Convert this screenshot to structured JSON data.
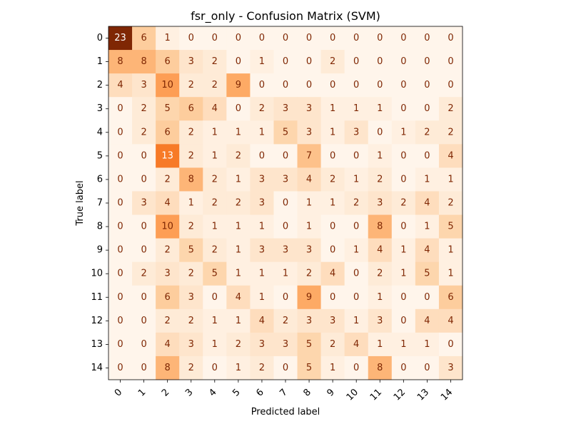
{
  "chart_data": {
    "type": "heatmap",
    "title": "fsr_only - Confusion Matrix (SVM)",
    "xlabel": "Predicted label",
    "ylabel": "True label",
    "colormap": "Oranges",
    "vmin": 0,
    "vmax": 23,
    "x_tick_labels": [
      "0",
      "1",
      "2",
      "3",
      "4",
      "5",
      "6",
      "7",
      "8",
      "9",
      "10",
      "11",
      "12",
      "13",
      "14"
    ],
    "y_tick_labels": [
      "0",
      "1",
      "2",
      "3",
      "4",
      "5",
      "6",
      "7",
      "8",
      "9",
      "10",
      "11",
      "12",
      "13",
      "14"
    ],
    "values": [
      [
        23,
        6,
        1,
        0,
        0,
        0,
        0,
        0,
        0,
        0,
        0,
        0,
        0,
        0,
        0
      ],
      [
        8,
        8,
        6,
        3,
        2,
        0,
        1,
        0,
        0,
        2,
        0,
        0,
        0,
        0,
        0
      ],
      [
        4,
        3,
        10,
        2,
        2,
        9,
        0,
        0,
        0,
        0,
        0,
        0,
        0,
        0,
        0
      ],
      [
        0,
        2,
        5,
        6,
        4,
        0,
        2,
        3,
        3,
        1,
        1,
        1,
        0,
        0,
        2
      ],
      [
        0,
        2,
        6,
        2,
        1,
        1,
        1,
        5,
        3,
        1,
        3,
        0,
        1,
        2,
        2
      ],
      [
        0,
        0,
        13,
        2,
        1,
        2,
        0,
        0,
        7,
        0,
        0,
        1,
        0,
        0,
        4
      ],
      [
        0,
        0,
        2,
        8,
        2,
        1,
        3,
        3,
        4,
        2,
        1,
        2,
        0,
        1,
        1
      ],
      [
        0,
        3,
        4,
        1,
        2,
        2,
        3,
        0,
        1,
        1,
        2,
        3,
        2,
        4,
        2
      ],
      [
        0,
        0,
        10,
        2,
        1,
        1,
        1,
        0,
        1,
        0,
        0,
        8,
        0,
        1,
        5
      ],
      [
        0,
        0,
        2,
        5,
        2,
        1,
        3,
        3,
        3,
        0,
        1,
        4,
        1,
        4,
        1
      ],
      [
        0,
        2,
        3,
        2,
        5,
        1,
        1,
        1,
        2,
        4,
        0,
        2,
        1,
        5,
        1
      ],
      [
        0,
        0,
        6,
        3,
        0,
        4,
        1,
        0,
        9,
        0,
        0,
        1,
        0,
        0,
        6
      ],
      [
        0,
        0,
        2,
        2,
        1,
        1,
        4,
        2,
        3,
        3,
        1,
        3,
        0,
        4,
        4
      ],
      [
        0,
        0,
        4,
        3,
        1,
        2,
        3,
        3,
        5,
        2,
        4,
        1,
        1,
        1,
        0
      ],
      [
        0,
        0,
        8,
        2,
        0,
        1,
        2,
        0,
        5,
        1,
        0,
        8,
        0,
        0,
        3
      ]
    ]
  }
}
